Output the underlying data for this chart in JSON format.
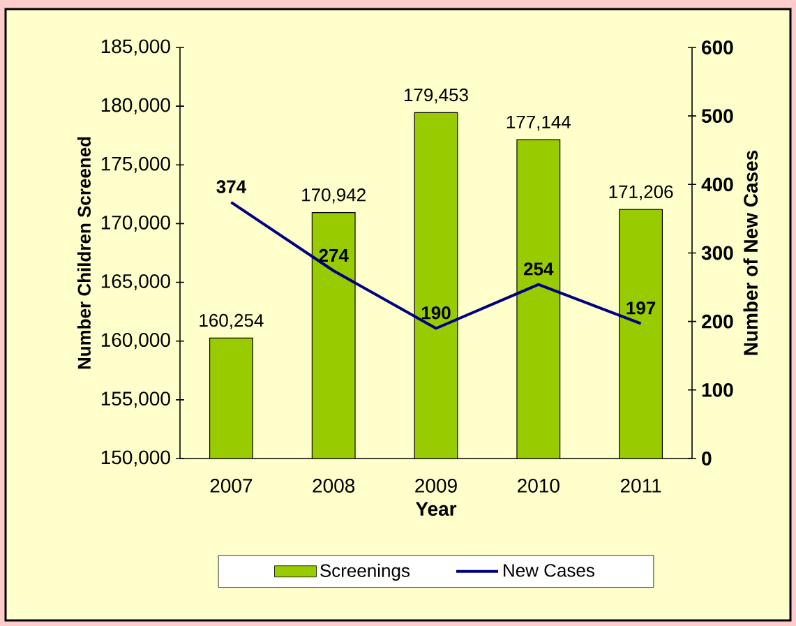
{
  "chart_data": {
    "type": "bar",
    "xlabel": "Year",
    "ylabel": "Number Children Screened",
    "y2label": "Number of New Cases",
    "categories": [
      "2007",
      "2008",
      "2009",
      "2010",
      "2011"
    ],
    "series": [
      {
        "name": "Screenings",
        "color": "#99cc00",
        "values": [
          160254,
          170942,
          179453,
          177144,
          171206
        ],
        "value_labels": [
          "160,254",
          "170,942",
          "179,453",
          "177,144",
          "171,206"
        ]
      },
      {
        "name": "New Cases",
        "type": "line",
        "axis": "y2",
        "color": "#000080",
        "values": [
          374,
          274,
          190,
          254,
          197
        ],
        "value_labels": [
          "374",
          "274",
          "190",
          "254",
          "197"
        ]
      }
    ],
    "ylim": [
      150000,
      185000
    ],
    "yticks": [
      {
        "value": 150000,
        "label": "150,000"
      },
      {
        "value": 155000,
        "label": "155,000"
      },
      {
        "value": 160000,
        "label": "160,000"
      },
      {
        "value": 165000,
        "label": "165,000"
      },
      {
        "value": 170000,
        "label": "170,000"
      },
      {
        "value": 175000,
        "label": "175,000"
      },
      {
        "value": 180000,
        "label": "180,000"
      },
      {
        "value": 185000,
        "label": "185,000"
      }
    ],
    "y2lim": [
      0,
      600
    ],
    "y2ticks": [
      0,
      100,
      200,
      300,
      400,
      500,
      600
    ],
    "legend": "bottom"
  }
}
